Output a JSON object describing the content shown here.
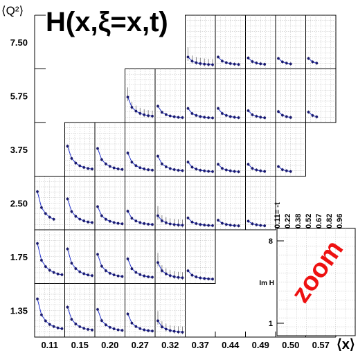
{
  "chart_data": {
    "type": "scatter",
    "title": "H(x,ξ=x,t)",
    "ylabel": "⟨Q²⟩",
    "xlabel": "⟨x⟩",
    "q2_labels": [
      "7.50",
      "5.75",
      "3.75",
      "2.50",
      "1.75",
      "1.35"
    ],
    "x_labels": [
      "0.11",
      "0.15",
      "0.20",
      "0.27",
      "0.32",
      "0.37",
      "0.44",
      "0.49",
      "0.50",
      "0.57"
    ],
    "t_labels": [
      "0.11= -t",
      "0.22",
      "0.38",
      "0.52",
      "0.67",
      "0.82",
      "0.96"
    ],
    "zoom": {
      "label": "zoom",
      "axis_label": "Im H",
      "scale": "log",
      "ticks": [
        "8",
        "1"
      ]
    },
    "marker_color": "#1a1a6e",
    "line_color": "#2233cc",
    "error_color": "#555555",
    "title_color": "#000000",
    "zoom_color": "#ee1111",
    "shape": [
      1,
      0.55,
      0.38,
      0.28,
      0.22,
      0.18,
      0.16
    ],
    "cells": [
      {
        "row": 0,
        "col": 5,
        "amp": 0.2,
        "pts": 7,
        "err": true
      },
      {
        "row": 0,
        "col": 6,
        "amp": 0.2,
        "pts": 6,
        "err": false
      },
      {
        "row": 0,
        "col": 7,
        "amp": 0.18,
        "pts": 5,
        "err": false
      },
      {
        "row": 0,
        "col": 8,
        "amp": 0.17,
        "pts": 4,
        "err": false
      },
      {
        "row": 0,
        "col": 9,
        "amp": 0.17,
        "pts": 3,
        "err": false
      },
      {
        "row": 1,
        "col": 3,
        "amp": 0.5,
        "pts": 7,
        "err": true
      },
      {
        "row": 1,
        "col": 4,
        "amp": 0.3,
        "pts": 7,
        "err": false
      },
      {
        "row": 1,
        "col": 5,
        "amp": 0.25,
        "pts": 7,
        "err": false
      },
      {
        "row": 1,
        "col": 6,
        "amp": 0.25,
        "pts": 6,
        "err": false
      },
      {
        "row": 1,
        "col": 7,
        "amp": 0.2,
        "pts": 5,
        "err": false
      },
      {
        "row": 1,
        "col": 8,
        "amp": 0.18,
        "pts": 4,
        "err": false
      },
      {
        "row": 1,
        "col": 9,
        "amp": 0.17,
        "pts": 3,
        "err": false
      },
      {
        "row": 2,
        "col": 1,
        "amp": 0.6,
        "pts": 7,
        "err": false
      },
      {
        "row": 2,
        "col": 2,
        "amp": 0.55,
        "pts": 7,
        "err": false
      },
      {
        "row": 2,
        "col": 3,
        "amp": 0.45,
        "pts": 7,
        "err": false
      },
      {
        "row": 2,
        "col": 4,
        "amp": 0.38,
        "pts": 7,
        "err": false
      },
      {
        "row": 2,
        "col": 5,
        "amp": 0.25,
        "pts": 7,
        "err": false
      },
      {
        "row": 2,
        "col": 6,
        "amp": 0.2,
        "pts": 6,
        "err": false
      },
      {
        "row": 2,
        "col": 7,
        "amp": 0.2,
        "pts": 5,
        "err": false
      },
      {
        "row": 2,
        "col": 8,
        "amp": 0.15,
        "pts": 4,
        "err": false
      },
      {
        "row": 3,
        "col": 0,
        "amp": 0.78,
        "pts": 5,
        "err": false
      },
      {
        "row": 3,
        "col": 1,
        "amp": 0.62,
        "pts": 7,
        "err": false
      },
      {
        "row": 3,
        "col": 2,
        "amp": 0.45,
        "pts": 7,
        "err": false
      },
      {
        "row": 3,
        "col": 3,
        "amp": 0.35,
        "pts": 7,
        "err": false
      },
      {
        "row": 3,
        "col": 4,
        "amp": 0.25,
        "pts": 7,
        "err": true
      },
      {
        "row": 3,
        "col": 5,
        "amp": 0.2,
        "pts": 7,
        "err": false
      },
      {
        "row": 3,
        "col": 6,
        "amp": 0.15,
        "pts": 6,
        "err": false
      },
      {
        "row": 3,
        "col": 7,
        "amp": 0.13,
        "pts": 5,
        "err": false
      },
      {
        "row": 4,
        "col": 0,
        "amp": 0.82,
        "pts": 7,
        "err": false
      },
      {
        "row": 4,
        "col": 1,
        "amp": 0.7,
        "pts": 7,
        "err": false
      },
      {
        "row": 4,
        "col": 2,
        "amp": 0.58,
        "pts": 7,
        "err": false
      },
      {
        "row": 4,
        "col": 3,
        "amp": 0.48,
        "pts": 7,
        "err": false
      },
      {
        "row": 4,
        "col": 4,
        "amp": 0.4,
        "pts": 7,
        "err": true
      },
      {
        "row": 4,
        "col": 5,
        "amp": 0.22,
        "pts": 7,
        "err": false
      },
      {
        "row": 5,
        "col": 0,
        "amp": 0.78,
        "pts": 7,
        "err": false
      },
      {
        "row": 5,
        "col": 1,
        "amp": 0.6,
        "pts": 7,
        "err": false
      },
      {
        "row": 5,
        "col": 2,
        "amp": 0.55,
        "pts": 7,
        "err": false
      },
      {
        "row": 5,
        "col": 3,
        "amp": 0.45,
        "pts": 7,
        "err": false
      },
      {
        "row": 5,
        "col": 4,
        "amp": 0.3,
        "pts": 7,
        "err": true
      }
    ]
  }
}
